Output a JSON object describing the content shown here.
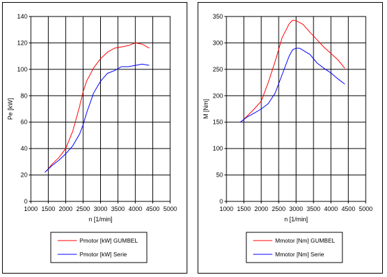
{
  "chart_data": [
    {
      "type": "line",
      "title": "",
      "xlabel": "n [1/min]",
      "ylabel": "Pe [kW]",
      "xlim": [
        1000,
        5000
      ],
      "ylim": [
        0,
        140
      ],
      "xticks": [
        "1000",
        "1500",
        "2000",
        "2500",
        "3000",
        "3500",
        "4000",
        "4500",
        "5000"
      ],
      "yticks": [
        "0",
        "20",
        "40",
        "60",
        "80",
        "100",
        "120",
        "140"
      ],
      "grid": true,
      "legend_position": "bottom",
      "series": [
        {
          "name": "Pmotor [kW] GUMBEL",
          "color": "#ff0000",
          "x": [
            1450,
            1600,
            1800,
            2000,
            2200,
            2400,
            2500,
            2600,
            2800,
            3000,
            3200,
            3400,
            3600,
            3800,
            4000,
            4200,
            4400
          ],
          "y": [
            23,
            28,
            33,
            40,
            53,
            72,
            83,
            91,
            101,
            108,
            113,
            116,
            117,
            118,
            120,
            119,
            116
          ]
        },
        {
          "name": "Pmotor [kW] Serie",
          "color": "#0000ff",
          "x": [
            1400,
            1600,
            1800,
            2000,
            2200,
            2400,
            2500,
            2600,
            2800,
            3000,
            3200,
            3400,
            3600,
            3800,
            4000,
            4200,
            4400
          ],
          "y": [
            22,
            27,
            31,
            36,
            42,
            51,
            58,
            67,
            82,
            91,
            97,
            99,
            102,
            102,
            103,
            104,
            103
          ]
        }
      ]
    },
    {
      "type": "line",
      "title": "",
      "xlabel": "n [1/min]",
      "ylabel": "M [Nm]",
      "xlim": [
        1000,
        5000
      ],
      "ylim": [
        0,
        350
      ],
      "xticks": [
        "1000",
        "1500",
        "2000",
        "2500",
        "3000",
        "3500",
        "4000",
        "4500",
        "5000"
      ],
      "yticks": [
        "0",
        "50",
        "100",
        "150",
        "200",
        "250",
        "300",
        "350"
      ],
      "grid": true,
      "legend_position": "bottom",
      "series": [
        {
          "name": "Mmotor [Nm] GUMBEL",
          "color": "#ff0000",
          "x": [
            1450,
            1600,
            1800,
            2000,
            2200,
            2400,
            2600,
            2800,
            2900,
            3000,
            3200,
            3400,
            3600,
            3800,
            4000,
            4200,
            4400
          ],
          "y": [
            152,
            162,
            175,
            190,
            225,
            265,
            310,
            336,
            343,
            342,
            335,
            320,
            306,
            292,
            280,
            268,
            252
          ]
        },
        {
          "name": "Mmotor [Nm] Serie",
          "color": "#0000ff",
          "x": [
            1400,
            1600,
            1800,
            2000,
            2200,
            2400,
            2600,
            2800,
            2900,
            3000,
            3100,
            3200,
            3400,
            3600,
            3800,
            4000,
            4200,
            4400
          ],
          "y": [
            150,
            160,
            167,
            175,
            185,
            205,
            240,
            275,
            287,
            290,
            290,
            286,
            278,
            262,
            252,
            243,
            232,
            222
          ]
        }
      ]
    }
  ]
}
